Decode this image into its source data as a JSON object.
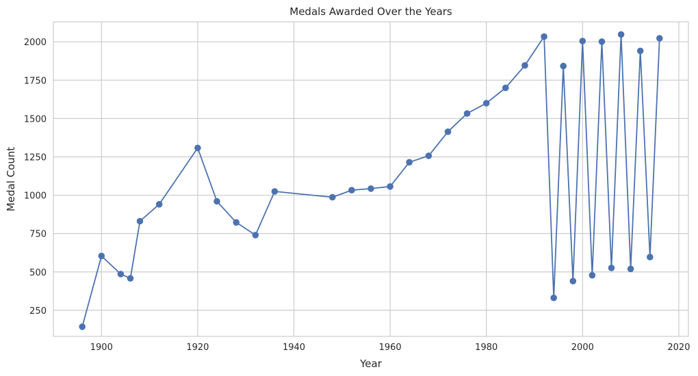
{
  "chart_data": {
    "type": "line",
    "title": "Medals Awarded Over the Years",
    "xlabel": "Year",
    "ylabel": "Medal Count",
    "xlim": [
      1890,
      2022
    ],
    "ylim": [
      80,
      2130
    ],
    "xticks": [
      1900,
      1920,
      1940,
      1960,
      1980,
      2000,
      2020
    ],
    "yticks": [
      250,
      500,
      750,
      1000,
      1250,
      1500,
      1750,
      2000
    ],
    "xtick_labels": [
      "1900",
      "1920",
      "1940",
      "1960",
      "1980",
      "2000",
      "2020"
    ],
    "ytick_labels": [
      "250",
      "500",
      "750",
      "1000",
      "1250",
      "1500",
      "1750",
      "2000"
    ],
    "grid": true,
    "color": "#4c72b0",
    "marker": "circle",
    "series": [
      {
        "x": [
          1896,
          1900,
          1904,
          1906,
          1908,
          1912,
          1920,
          1924,
          1928,
          1932,
          1936,
          1948,
          1952,
          1956,
          1960,
          1964,
          1968,
          1972,
          1976,
          1980,
          1984,
          1988,
          1992,
          1994,
          1996,
          1998,
          2000,
          2002,
          2004,
          2006,
          2008,
          2010,
          2012,
          2014,
          2016
        ],
        "y": [
          143,
          604,
          486,
          458,
          831,
          941,
          1308,
          960,
          823,
          740,
          1025,
          987,
          1033,
          1043,
          1057,
          1215,
          1257,
          1414,
          1533,
          1600,
          1700,
          1846,
          2034,
          331,
          1842,
          440,
          2005,
          478,
          2001,
          526,
          2048,
          520,
          1941,
          597,
          2023
        ]
      }
    ]
  }
}
